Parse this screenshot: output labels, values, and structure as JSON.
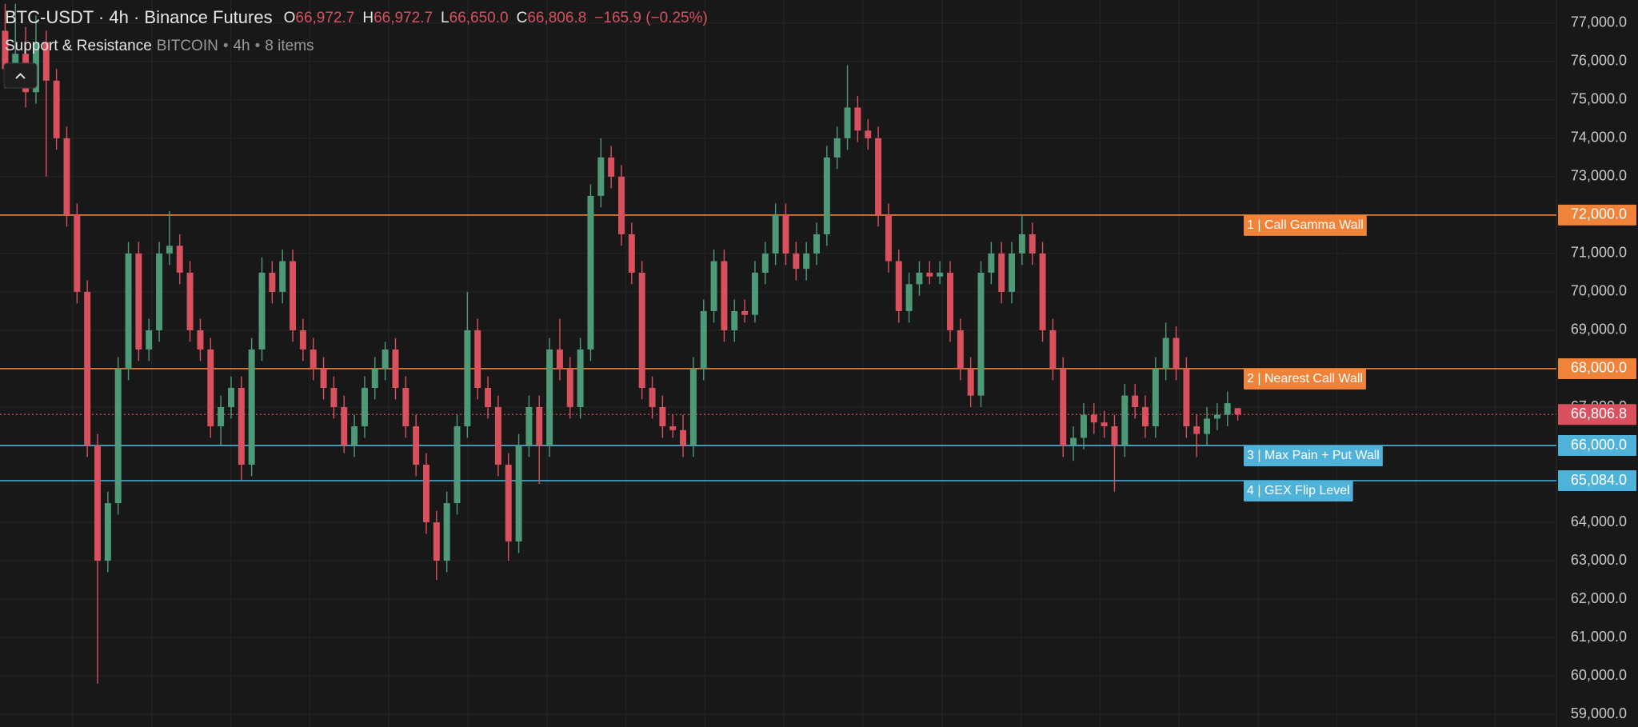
{
  "chart_data": {
    "type": "candlestick",
    "title": "BTC-USDT · 4h · Binance Futures",
    "ohlc_legend": [
      {
        "key": "O",
        "value": "66,972.7"
      },
      {
        "key": "H",
        "value": "66,972.7"
      },
      {
        "key": "L",
        "value": "66,650.0"
      },
      {
        "key": "C",
        "value": "66,806.8"
      }
    ],
    "change": "−165.9 (−0.25%)",
    "indicator": {
      "name": "Support & Resistance",
      "args": [
        "BITCOIN",
        "4h",
        "8 items"
      ]
    },
    "up_color": "#4e9a78",
    "down_color": "#d9505e",
    "grid": true,
    "ylim": [
      58670,
      77600
    ],
    "yticks": [
      {
        "value": 59000,
        "label": "59,000.0"
      },
      {
        "value": 60000,
        "label": "60,000.0"
      },
      {
        "value": 61000,
        "label": "61,000.0"
      },
      {
        "value": 62000,
        "label": "62,000.0"
      },
      {
        "value": 63000,
        "label": "63,000.0"
      },
      {
        "value": 64000,
        "label": "64,000.0"
      },
      {
        "value": 65000,
        "label": "65,000.0"
      },
      {
        "value": 66000,
        "label": "66,000.0"
      },
      {
        "value": 67000,
        "label": "67,000.0"
      },
      {
        "value": 68000,
        "label": "68,000.0"
      },
      {
        "value": 69000,
        "label": "69,000.0"
      },
      {
        "value": 70000,
        "label": "70,000.0"
      },
      {
        "value": 71000,
        "label": "71,000.0"
      },
      {
        "value": 72000,
        "label": "72,000.0"
      },
      {
        "value": 73000,
        "label": "73,000.0"
      },
      {
        "value": 74000,
        "label": "74,000.0"
      },
      {
        "value": 75000,
        "label": "75,000.0"
      },
      {
        "value": 76000,
        "label": "76,000.0"
      },
      {
        "value": 77000,
        "label": "77,000.0"
      }
    ],
    "levels": [
      {
        "value": 72000,
        "axis_label": "72,000.0",
        "label": "1 | Call Gamma Wall",
        "color": "#ee8339"
      },
      {
        "value": 68000,
        "axis_label": "68,000.0",
        "label": "2 | Nearest Call Wall",
        "color": "#ee8339"
      },
      {
        "value": 66000,
        "axis_label": "66,000.0",
        "label": "3 | Max Pain + Put Wall",
        "color": "#4fb3d9"
      },
      {
        "value": 65084,
        "axis_label": "65,084.0",
        "label": "4 | GEX Flip Level",
        "color": "#4fb3d9"
      }
    ],
    "last_price": {
      "value": 66806.8,
      "label": "66,806.8",
      "color": "#d9505e"
    },
    "candles": [
      [
        76800,
        77500,
        75300,
        75800
      ],
      [
        75800,
        77500,
        75400,
        76200
      ],
      [
        76200,
        76900,
        74800,
        75200
      ],
      [
        75200,
        77200,
        74900,
        76500
      ],
      [
        76500,
        76800,
        73000,
        75500
      ],
      [
        75500,
        75800,
        73700,
        74000
      ],
      [
        74000,
        74300,
        71700,
        72000
      ],
      [
        72000,
        72300,
        69700,
        70000
      ],
      [
        70000,
        70300,
        65700,
        66000
      ],
      [
        66000,
        66300,
        59800,
        63000
      ],
      [
        63000,
        64800,
        62700,
        64500
      ],
      [
        64500,
        68300,
        64200,
        68000
      ],
      [
        68000,
        71300,
        67700,
        71000
      ],
      [
        71000,
        71300,
        68200,
        68500
      ],
      [
        68500,
        69300,
        68200,
        69000
      ],
      [
        69000,
        71300,
        68700,
        71000
      ],
      [
        71000,
        72100,
        70700,
        71200
      ],
      [
        71200,
        71500,
        70200,
        70500
      ],
      [
        70500,
        70800,
        68700,
        69000
      ],
      [
        69000,
        69300,
        68200,
        68500
      ],
      [
        68500,
        68800,
        66200,
        66500
      ],
      [
        66500,
        67300,
        66000,
        67000
      ],
      [
        67000,
        67800,
        66700,
        67500
      ],
      [
        67500,
        67800,
        65100,
        65500
      ],
      [
        65500,
        68800,
        65200,
        68500
      ],
      [
        68500,
        70900,
        68200,
        70500
      ],
      [
        70500,
        70800,
        69700,
        70000
      ],
      [
        70000,
        71100,
        69700,
        70800
      ],
      [
        70800,
        71100,
        68700,
        69000
      ],
      [
        69000,
        69300,
        68200,
        68500
      ],
      [
        68500,
        68800,
        67700,
        68000
      ],
      [
        68000,
        68300,
        67200,
        67500
      ],
      [
        67500,
        67800,
        66700,
        67000
      ],
      [
        67000,
        67300,
        65800,
        66000
      ],
      [
        66000,
        66800,
        65700,
        66500
      ],
      [
        66500,
        67800,
        66200,
        67500
      ],
      [
        67500,
        68300,
        67200,
        68000
      ],
      [
        68000,
        68700,
        67700,
        68500
      ],
      [
        68500,
        68800,
        67200,
        67500
      ],
      [
        67500,
        67800,
        66200,
        66500
      ],
      [
        66500,
        66800,
        65200,
        65500
      ],
      [
        65500,
        65800,
        63700,
        64000
      ],
      [
        64000,
        64300,
        62500,
        63000
      ],
      [
        63000,
        64800,
        62700,
        64500
      ],
      [
        64500,
        66800,
        64200,
        66500
      ],
      [
        66500,
        70000,
        66200,
        69000
      ],
      [
        69000,
        69300,
        67200,
        67500
      ],
      [
        67500,
        67800,
        66700,
        67000
      ],
      [
        67000,
        67300,
        65200,
        65500
      ],
      [
        65500,
        65800,
        63000,
        63500
      ],
      [
        63500,
        66300,
        63200,
        66000
      ],
      [
        66000,
        67300,
        65700,
        67000
      ],
      [
        67000,
        67300,
        65000,
        66000
      ],
      [
        66000,
        68800,
        65700,
        68500
      ],
      [
        68500,
        69300,
        67700,
        68000
      ],
      [
        68000,
        68300,
        66700,
        67000
      ],
      [
        67000,
        68800,
        66700,
        68500
      ],
      [
        68500,
        72800,
        68200,
        72500
      ],
      [
        72500,
        74000,
        72200,
        73500
      ],
      [
        73500,
        73800,
        72700,
        73000
      ],
      [
        73000,
        73300,
        71200,
        71500
      ],
      [
        71500,
        71800,
        70200,
        70500
      ],
      [
        70500,
        70800,
        67200,
        67500
      ],
      [
        67500,
        67800,
        66700,
        67000
      ],
      [
        67000,
        67300,
        66200,
        66500
      ],
      [
        66500,
        66800,
        66200,
        66400
      ],
      [
        66400,
        66800,
        65700,
        66000
      ],
      [
        66000,
        68300,
        65700,
        68000
      ],
      [
        68000,
        69800,
        67700,
        69500
      ],
      [
        69500,
        71100,
        69200,
        70800
      ],
      [
        70800,
        71100,
        68700,
        69000
      ],
      [
        69000,
        69800,
        68700,
        69500
      ],
      [
        69500,
        69800,
        69200,
        69400
      ],
      [
        69400,
        70800,
        69200,
        70500
      ],
      [
        70500,
        71300,
        70200,
        71000
      ],
      [
        71000,
        72300,
        70700,
        72000
      ],
      [
        72000,
        72300,
        70700,
        71000
      ],
      [
        71000,
        71300,
        70300,
        70600
      ],
      [
        70600,
        71300,
        70300,
        71000
      ],
      [
        71000,
        71800,
        70700,
        71500
      ],
      [
        71500,
        73800,
        71200,
        73500
      ],
      [
        73500,
        74300,
        73200,
        74000
      ],
      [
        74000,
        75900,
        73700,
        74800
      ],
      [
        74800,
        75100,
        73900,
        74200
      ],
      [
        74200,
        74500,
        73700,
        74000
      ],
      [
        74000,
        74300,
        71700,
        72000
      ],
      [
        72000,
        72300,
        70500,
        70800
      ],
      [
        70800,
        71100,
        69200,
        69500
      ],
      [
        69500,
        70500,
        69200,
        70200
      ],
      [
        70200,
        70800,
        69900,
        70500
      ],
      [
        70500,
        70800,
        70200,
        70400
      ],
      [
        70400,
        70800,
        70200,
        70500
      ],
      [
        70500,
        70800,
        68700,
        69000
      ],
      [
        69000,
        69300,
        67700,
        68000
      ],
      [
        68000,
        68300,
        67000,
        67300
      ],
      [
        67300,
        70800,
        67000,
        70500
      ],
      [
        70500,
        71300,
        70200,
        71000
      ],
      [
        71000,
        71300,
        69700,
        70000
      ],
      [
        70000,
        71300,
        69700,
        71000
      ],
      [
        71000,
        72000,
        70700,
        71500
      ],
      [
        71500,
        71800,
        70700,
        71000
      ],
      [
        71000,
        71300,
        68700,
        69000
      ],
      [
        69000,
        69300,
        67700,
        68000
      ],
      [
        68000,
        68300,
        65700,
        66000
      ],
      [
        66000,
        66500,
        65600,
        66200
      ],
      [
        66200,
        67100,
        65900,
        66800
      ],
      [
        66800,
        67100,
        66300,
        66600
      ],
      [
        66600,
        66900,
        66200,
        66500
      ],
      [
        66500,
        66800,
        64800,
        66000
      ],
      [
        66000,
        67600,
        65700,
        67300
      ],
      [
        67300,
        67600,
        66700,
        67000
      ],
      [
        67000,
        67300,
        66200,
        66500
      ],
      [
        66500,
        68300,
        66200,
        68000
      ],
      [
        68000,
        69200,
        67700,
        68800
      ],
      [
        68800,
        69100,
        67700,
        68000
      ],
      [
        68000,
        68300,
        66200,
        66500
      ],
      [
        66500,
        66800,
        65700,
        66300
      ],
      [
        66300,
        67000,
        66000,
        66700
      ],
      [
        66700,
        67100,
        66400,
        66800
      ],
      [
        66800,
        67400,
        66500,
        67100
      ],
      [
        66972.7,
        66972.7,
        66650,
        66806.8
      ]
    ]
  }
}
